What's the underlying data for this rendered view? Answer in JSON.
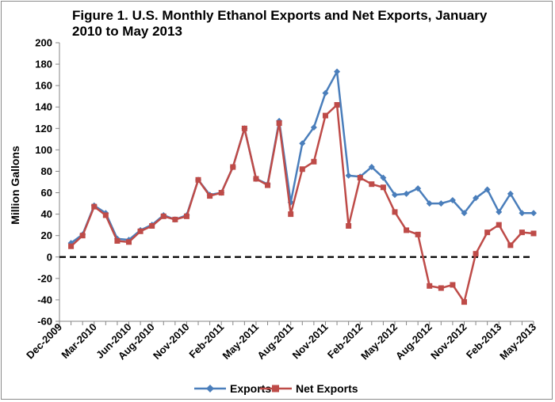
{
  "chart_data": {
    "type": "line",
    "title_line1": "Figure  1. U.S. Monthly  Ethanol  Exports and Net Exports, January",
    "title_line2": "2010 to May  2013",
    "ylabel": "Million Gallons",
    "xlabel": "",
    "ylim": [
      -60,
      200
    ],
    "ytick_step": 20,
    "x_tick_labels": [
      "Dec-2009",
      "Mar-2010",
      "Jun-2010",
      "Aug-2010",
      "Nov-2010",
      "Feb-2011",
      "May-2011",
      "Aug-2011",
      "Nov-2011",
      "Feb-2012",
      "May-2012",
      "Aug-2012",
      "Nov-2012",
      "Feb-2013",
      "May-2013"
    ],
    "zero_line": "dashed",
    "grid": false,
    "legend_position": "bottom",
    "x": [
      "Jan-2010",
      "Feb-2010",
      "Mar-2010",
      "Apr-2010",
      "May-2010",
      "Jun-2010",
      "Jul-2010",
      "Aug-2010",
      "Sep-2010",
      "Oct-2010",
      "Nov-2010",
      "Dec-2010",
      "Jan-2011",
      "Feb-2011",
      "Mar-2011",
      "Apr-2011",
      "May-2011",
      "Jun-2011",
      "Jul-2011",
      "Aug-2011",
      "Sep-2011",
      "Oct-2011",
      "Nov-2011",
      "Dec-2011",
      "Jan-2012",
      "Feb-2012",
      "Mar-2012",
      "Apr-2012",
      "May-2012",
      "Jun-2012",
      "Jul-2012",
      "Aug-2012",
      "Sep-2012",
      "Oct-2012",
      "Nov-2012",
      "Dec-2012",
      "Jan-2013",
      "Feb-2013",
      "Mar-2013",
      "Apr-2013",
      "May-2013"
    ],
    "series": [
      {
        "name": "Exports",
        "color": "#4a7ebb",
        "marker": "diamond",
        "values": [
          13,
          21,
          48,
          41,
          17,
          16,
          25,
          30,
          39,
          35,
          39,
          72,
          58,
          60,
          84,
          120,
          73,
          68,
          127,
          51,
          106,
          121,
          153,
          173,
          76,
          75,
          84,
          74,
          58,
          59,
          64,
          50,
          50,
          53,
          41,
          55,
          63,
          42,
          59,
          41,
          41
        ]
      },
      {
        "name": "Net Exports",
        "color": "#be4b48",
        "marker": "square",
        "values": [
          10,
          20,
          47,
          39,
          15,
          14,
          24,
          29,
          38,
          35,
          38,
          72,
          57,
          60,
          84,
          120,
          73,
          67,
          125,
          40,
          82,
          89,
          132,
          142,
          29,
          74,
          68,
          65,
          42,
          25,
          21,
          -27,
          -29,
          -26,
          -42,
          3,
          23,
          30,
          11,
          23,
          22
        ]
      }
    ]
  }
}
